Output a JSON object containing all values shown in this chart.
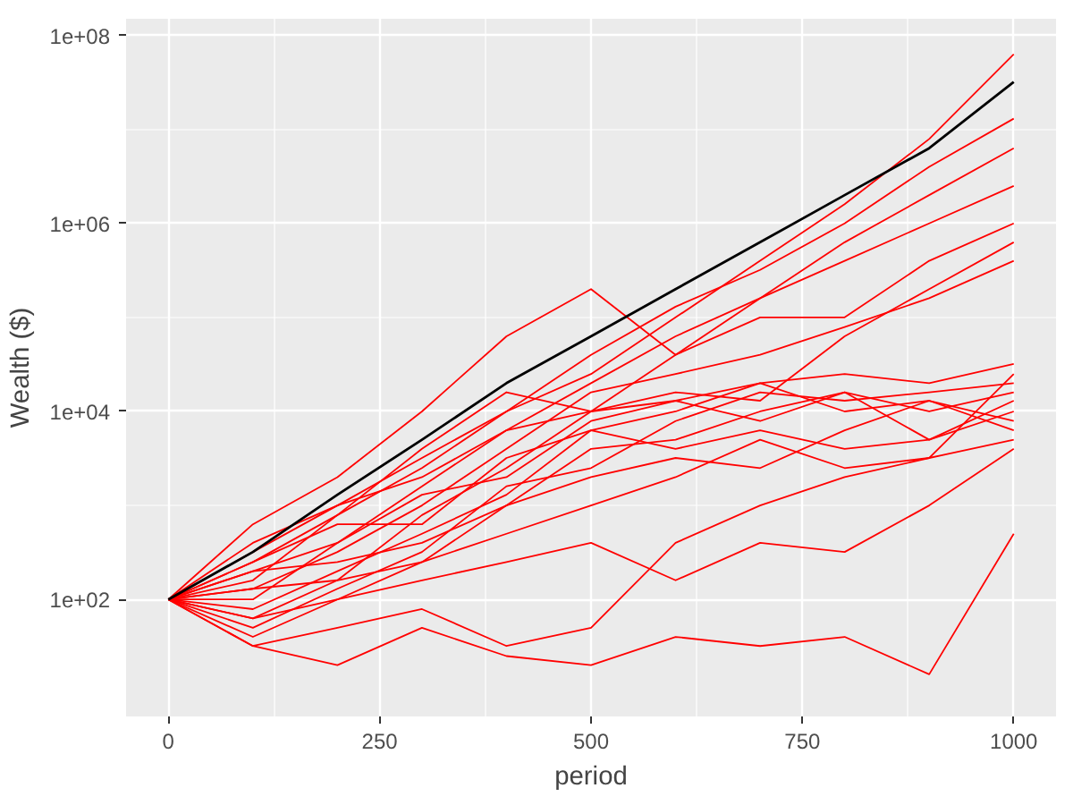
{
  "chart_data": {
    "type": "line",
    "xlabel": "period",
    "ylabel": "Wealth ($)",
    "log": "y",
    "grid": true,
    "marker": "none",
    "line_style": "solid",
    "xlim": [
      -50,
      1050
    ],
    "ylim": [
      5.7,
      150000000.0
    ],
    "xticks": [
      0,
      250,
      500,
      750,
      1000
    ],
    "yticks": [
      {
        "value": 100,
        "label": "1e+02"
      },
      {
        "value": 10000,
        "label": "1e+04"
      },
      {
        "value": 1000000,
        "label": "1e+06"
      },
      {
        "value": 100000000,
        "label": "1e+08"
      }
    ],
    "x": [
      0,
      100,
      200,
      300,
      400,
      500,
      600,
      700,
      800,
      900,
      1000
    ],
    "series": [
      {
        "color": "#ff0000",
        "values": [
          100,
          400,
          1000,
          3200,
          10000,
          25000,
          100000,
          400000,
          1600000,
          7900000,
          63000000
        ]
      },
      {
        "color": "#ff0000",
        "values": [
          100,
          250,
          790,
          2500,
          10000,
          40000,
          130000,
          320000,
          1000000,
          4000000,
          13000000
        ]
      },
      {
        "color": "#ff0000",
        "values": [
          100,
          630,
          2000,
          10000,
          63000,
          200000,
          40000,
          160000,
          630000,
          2000000,
          6300000
        ]
      },
      {
        "color": "#ff0000",
        "values": [
          100,
          200,
          400,
          1600,
          6300,
          20000,
          63000,
          160000,
          400000,
          1000000,
          2500000
        ]
      },
      {
        "color": "#ff0000",
        "values": [
          100,
          160,
          790,
          4000,
          16000,
          10000,
          40000,
          100000,
          100000,
          400000,
          1000000
        ]
      },
      {
        "color": "#ff0000",
        "values": [
          100,
          130,
          320,
          1000,
          4000,
          16000,
          25000,
          40000,
          79000,
          160000,
          400000
        ]
      },
      {
        "color": "#ff0000",
        "values": [
          100,
          320,
          1000,
          2000,
          6300,
          10000,
          16000,
          13000,
          63000,
          200000,
          630000
        ]
      },
      {
        "color": "#ff0000",
        "values": [
          100,
          63,
          160,
          790,
          2500,
          10000,
          13000,
          20000,
          25000,
          20000,
          32000
        ]
      },
      {
        "color": "#ff0000",
        "values": [
          100,
          100,
          400,
          1300,
          2000,
          7900,
          13000,
          7900,
          16000,
          10000,
          16000
        ]
      },
      {
        "color": "#ff0000",
        "values": [
          100,
          79,
          200,
          500,
          1300,
          6300,
          10000,
          20000,
          10000,
          13000,
          7900
        ]
      },
      {
        "color": "#ff0000",
        "values": [
          100,
          200,
          250,
          400,
          1000,
          4000,
          5000,
          10000,
          16000,
          5000,
          13000
        ]
      },
      {
        "color": "#ff0000",
        "values": [
          100,
          50,
          130,
          320,
          1600,
          2500,
          7900,
          16000,
          13000,
          16000,
          20000
        ]
      },
      {
        "color": "#ff0000",
        "values": [
          100,
          250,
          630,
          630,
          3200,
          6300,
          4000,
          6300,
          4000,
          5000,
          10000
        ]
      },
      {
        "color": "#ff0000",
        "values": [
          100,
          40,
          100,
          250,
          1000,
          2000,
          3200,
          2500,
          6300,
          13000,
          6300
        ]
      },
      {
        "color": "#ff0000",
        "values": [
          100,
          130,
          160,
          250,
          500,
          1000,
          2000,
          5000,
          2500,
          3200,
          25000
        ]
      },
      {
        "color": "#ff0000",
        "values": [
          100,
          63,
          100,
          160,
          250,
          400,
          160,
          400,
          320,
          1000,
          4000
        ]
      },
      {
        "color": "#ff0000",
        "values": [
          100,
          32,
          20,
          50,
          25,
          20,
          40,
          32,
          40,
          16,
          500
        ]
      },
      {
        "color": "#ff0000",
        "values": [
          100,
          32,
          50,
          79,
          32,
          50,
          400,
          1000,
          2000,
          3200,
          5000
        ]
      },
      {
        "color": "#000000",
        "values": [
          100,
          320,
          1300,
          5000,
          20000,
          63000,
          200000,
          630000,
          2000000,
          6300000,
          32000000
        ]
      }
    ]
  }
}
